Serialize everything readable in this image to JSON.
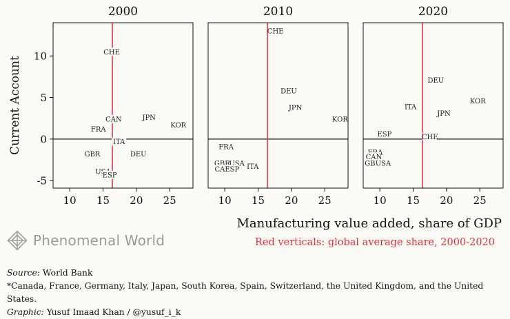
{
  "chart_data": {
    "type": "scatter",
    "ylabel": "Current Account",
    "xlabel": "Manufacturing value added, share of GDP",
    "note": "Red verticals: global average share, 2000-2020",
    "xlim": [
      7.5,
      28.5
    ],
    "ylim": [
      -5.9,
      14.0
    ],
    "xticks": [
      10,
      15,
      20,
      25
    ],
    "yticks": [
      -5,
      0,
      5,
      10
    ],
    "reference_x": 16.4,
    "reference_y": 0,
    "reference_color": "#e0303a",
    "panels": [
      {
        "title": "2000",
        "points": [
          {
            "label": "CHE",
            "x": 16.3,
            "y": 10.5
          },
          {
            "label": "CAN",
            "x": 16.6,
            "y": 2.4
          },
          {
            "label": "JPN",
            "x": 21.9,
            "y": 2.6
          },
          {
            "label": "KOR",
            "x": 26.3,
            "y": 1.7
          },
          {
            "label": "FRA",
            "x": 14.3,
            "y": 1.2
          },
          {
            "label": "ITA",
            "x": 17.4,
            "y": -0.3
          },
          {
            "label": "GBR",
            "x": 13.4,
            "y": -1.8
          },
          {
            "label": "DEU",
            "x": 20.3,
            "y": -1.8
          },
          {
            "label": "USA",
            "x": 15.0,
            "y": -3.9
          },
          {
            "label": "ESP",
            "x": 16.0,
            "y": -4.3
          }
        ]
      },
      {
        "title": "2010",
        "points": [
          {
            "label": "CHE",
            "x": 17.6,
            "y": 13.0
          },
          {
            "label": "DEU",
            "x": 19.6,
            "y": 5.8
          },
          {
            "label": "JPN",
            "x": 20.6,
            "y": 3.8
          },
          {
            "label": "KOR",
            "x": 27.3,
            "y": 2.4
          },
          {
            "label": "FRA",
            "x": 10.2,
            "y": -0.9
          },
          {
            "label": "GBR",
            "x": 9.6,
            "y": -2.9
          },
          {
            "label": "USA",
            "x": 11.8,
            "y": -2.9
          },
          {
            "label": "CAN",
            "x": 9.7,
            "y": -3.6
          },
          {
            "label": "ESP",
            "x": 11.1,
            "y": -3.6
          },
          {
            "label": "ITA",
            "x": 14.2,
            "y": -3.3
          }
        ]
      },
      {
        "title": "2020",
        "points": [
          {
            "label": "DEU",
            "x": 18.4,
            "y": 7.1
          },
          {
            "label": "KOR",
            "x": 24.7,
            "y": 4.6
          },
          {
            "label": "ITA",
            "x": 14.6,
            "y": 3.9
          },
          {
            "label": "JPN",
            "x": 19.6,
            "y": 3.1
          },
          {
            "label": "ESP",
            "x": 10.7,
            "y": 0.6
          },
          {
            "label": "CHE",
            "x": 17.5,
            "y": 0.3
          },
          {
            "label": "FRA",
            "x": 9.3,
            "y": -1.6
          },
          {
            "label": "CAN",
            "x": 9.1,
            "y": -2.1
          },
          {
            "label": "GBR",
            "x": 8.9,
            "y": -2.9
          },
          {
            "label": "USA",
            "x": 10.5,
            "y": -2.9
          }
        ]
      }
    ]
  },
  "branding": {
    "logo_text": "Phenomenal World",
    "logo_icon": "diamond-logo-icon"
  },
  "footer": {
    "source_label": "Source:",
    "source_value": "World Bank",
    "countries_note": "*Canada, France, Germany, Italy, Japan, South Korea, Spain, Switzerland, the United Kingdom, and the United States.",
    "graphic_label": "Graphic:",
    "graphic_value": "Yusuf Imaad Khan / @yusuf_i_k"
  }
}
